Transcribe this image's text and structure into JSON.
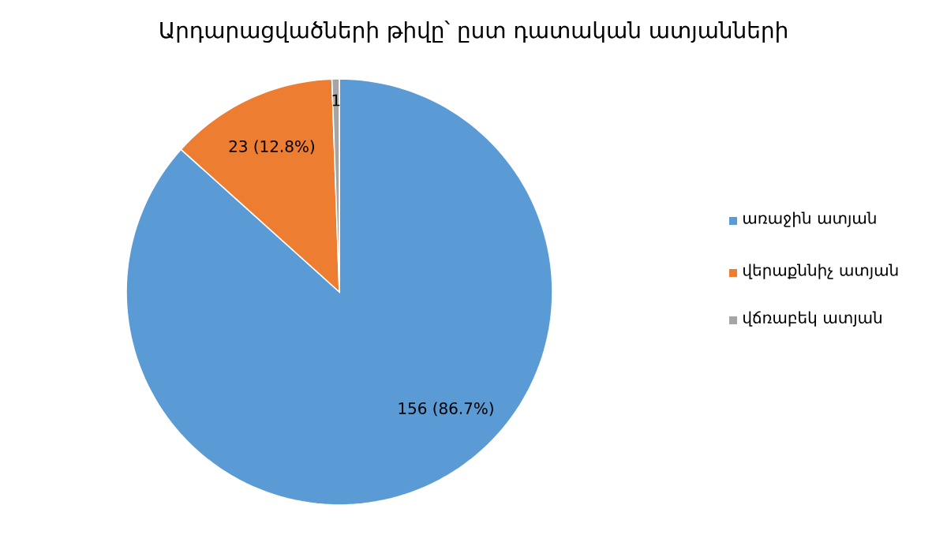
{
  "chart_data": {
    "type": "pie",
    "title": "Արդարացվածների թիվը՝ ըստ դատական ատյանների",
    "categories": [
      "առաջին ատյան",
      "վերաքննիչ ատյան",
      "վճռաբեկ ատյան"
    ],
    "values": [
      156,
      23,
      1
    ],
    "value_labels": [
      "156 (86.7%)",
      "23 (12.8%)",
      "1"
    ],
    "colors": [
      "#5b9bd5",
      "#ed7d31",
      "#a5a5a5"
    ],
    "legend": "right"
  }
}
